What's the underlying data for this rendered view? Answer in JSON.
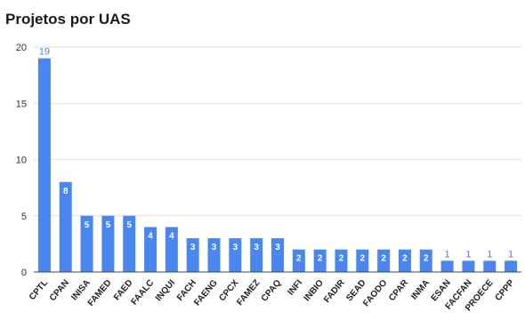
{
  "chart_data": {
    "type": "bar",
    "title": "Projetos por UAS",
    "categories": [
      "CPTL",
      "CPAN",
      "INISA",
      "FAMED",
      "FAED",
      "FAALC",
      "INQUI",
      "FACH",
      "FAENG",
      "CPCX",
      "FAMEZ",
      "CPAQ",
      "INFI",
      "INBIO",
      "FADIR",
      "SEAD",
      "FAODO",
      "CPAR",
      "INMA",
      "ESAN",
      "FACFAN",
      "PROECE",
      "CPPP"
    ],
    "values": [
      19,
      8,
      5,
      5,
      5,
      4,
      4,
      3,
      3,
      3,
      3,
      3,
      2,
      2,
      2,
      2,
      2,
      2,
      2,
      1,
      1,
      1,
      1
    ],
    "xlabel": "",
    "ylabel": "",
    "ylim": [
      0,
      20
    ],
    "yticks": [
      0,
      5,
      10,
      15,
      20
    ],
    "grid": true,
    "bar_color": "#4a86f0"
  }
}
